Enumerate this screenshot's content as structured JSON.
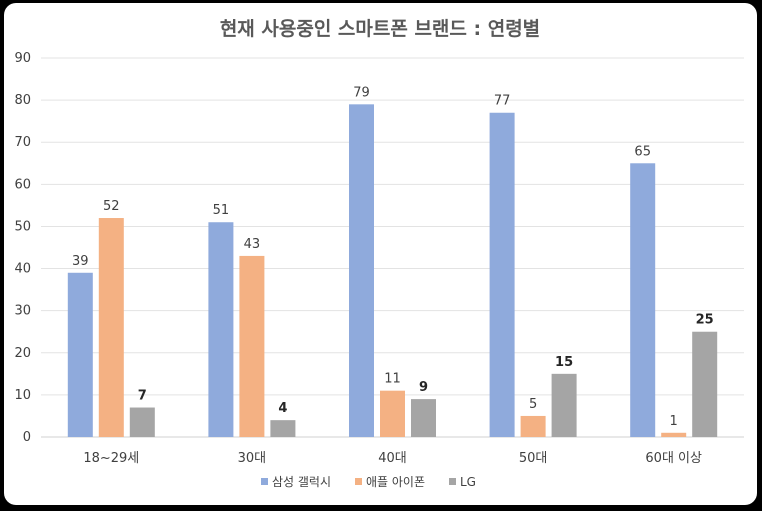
{
  "chart_data": {
    "type": "bar",
    "title": "현재 사용중인 스마트폰 브랜드 : 연령별",
    "xlabel": "",
    "ylabel": "",
    "ylim": [
      0,
      90
    ],
    "yticks": [
      0,
      10,
      20,
      30,
      40,
      50,
      60,
      70,
      80,
      90
    ],
    "grid": true,
    "legend_position": "bottom",
    "categories": [
      "18~29세",
      "30대",
      "40대",
      "50대",
      "60대 이상"
    ],
    "series": [
      {
        "name": "삼성 갤럭시",
        "values": [
          39,
          51,
          79,
          77,
          65
        ],
        "color": "#8FAADC"
      },
      {
        "name": "애플 아이폰",
        "values": [
          52,
          43,
          11,
          5,
          1
        ],
        "color": "#F4B183"
      },
      {
        "name": "LG",
        "values": [
          7,
          4,
          9,
          15,
          25
        ],
        "color": "#A5A5A5"
      }
    ]
  }
}
